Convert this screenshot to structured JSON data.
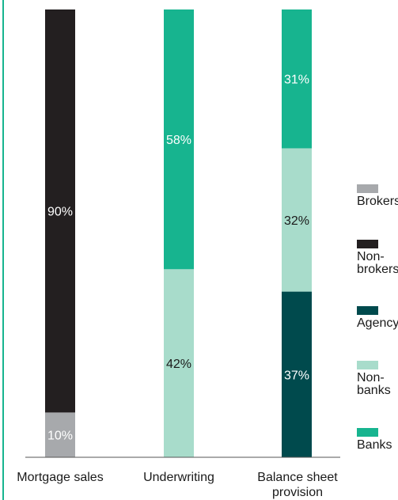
{
  "chart_data": {
    "type": "bar",
    "stacked": true,
    "normalized_percent": true,
    "categories": [
      "Mortgage sales",
      "Underwriting",
      "Balance sheet provision"
    ],
    "series": [
      {
        "name": "Brokers",
        "color": "#a7a9ac",
        "values": [
          10,
          0,
          0
        ],
        "labels": [
          "10%",
          "",
          ""
        ]
      },
      {
        "name": "Non-brokers",
        "color": "#231f20",
        "values": [
          90,
          0,
          0
        ],
        "labels": [
          "90%",
          "",
          ""
        ]
      },
      {
        "name": "Agency",
        "color": "#004a4d",
        "values": [
          0,
          0,
          37
        ],
        "labels": [
          "",
          "",
          "37%"
        ]
      },
      {
        "name": "Non-banks",
        "color": "#a8dccb",
        "values": [
          0,
          42,
          32
        ],
        "labels": [
          "",
          "42%",
          "32%"
        ]
      },
      {
        "name": "Banks",
        "color": "#17b48f",
        "values": [
          0,
          58,
          31
        ],
        "labels": [
          "",
          "58%",
          "31%"
        ]
      }
    ],
    "ylim": [
      0,
      100
    ],
    "grid": false,
    "legend_position": "right"
  },
  "legend_labels": [
    "Brokers",
    "Non-brokers",
    "Agency",
    "Non-banks",
    "Banks"
  ]
}
